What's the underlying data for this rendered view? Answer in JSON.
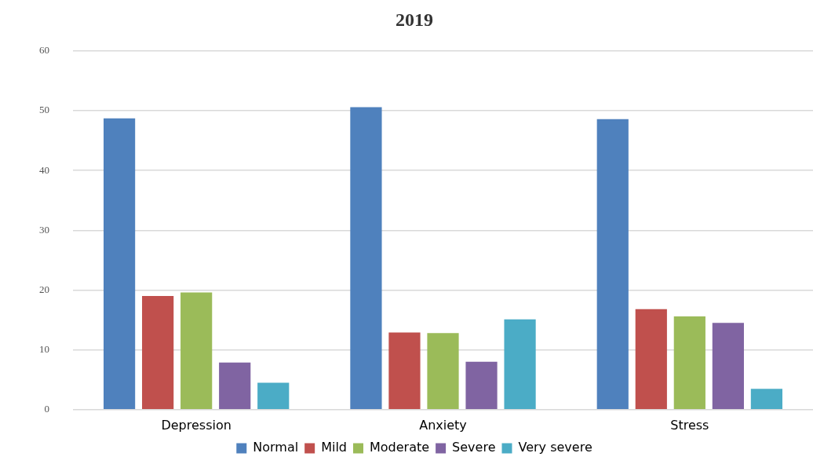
{
  "chart_data": {
    "type": "bar",
    "title": "2019",
    "categories": [
      "Depression",
      "Anxiety",
      "Stress"
    ],
    "series": [
      {
        "name": "Normal",
        "color": "#4f81bd",
        "values": [
          48.7,
          50.6,
          48.6
        ]
      },
      {
        "name": "Mild",
        "color": "#c0504d",
        "values": [
          19.0,
          12.9,
          16.8
        ]
      },
      {
        "name": "Moderate",
        "color": "#9bbb59",
        "values": [
          19.6,
          12.8,
          15.6
        ]
      },
      {
        "name": "Severe",
        "color": "#8064a2",
        "values": [
          7.9,
          8.0,
          14.5
        ]
      },
      {
        "name": "Very severe",
        "color": "#4bacc6",
        "values": [
          4.5,
          15.1,
          3.5
        ]
      }
    ],
    "ylim": [
      0,
      60
    ],
    "yticks": [
      0,
      10,
      20,
      30,
      40,
      50,
      60
    ],
    "grid": "y",
    "legend": "bottom"
  }
}
